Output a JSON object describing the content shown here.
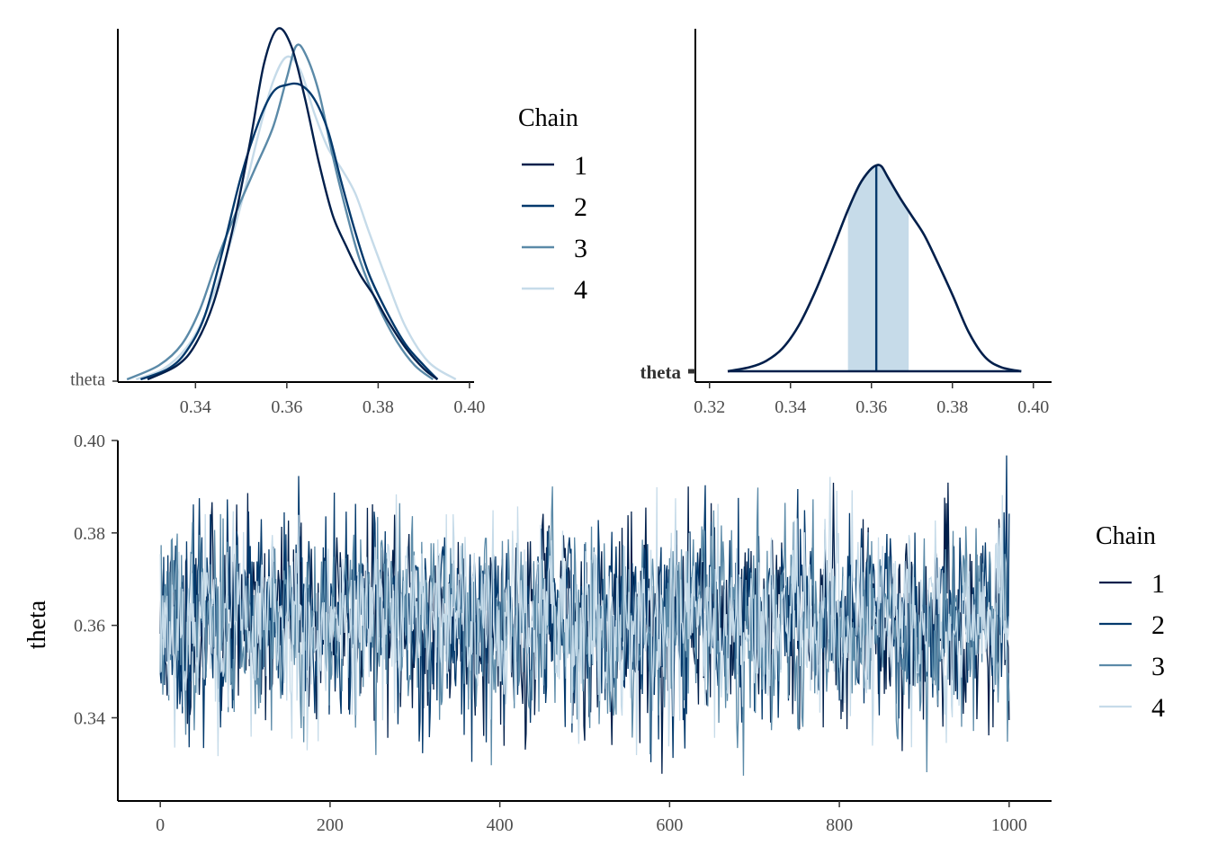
{
  "chart_data": [
    {
      "type": "line",
      "name": "density-overlay",
      "title": "",
      "xlabel": "",
      "ylabel": "",
      "y_tick_label": "theta",
      "xlim": [
        0.323,
        0.401
      ],
      "x_ticks": [
        "0.34",
        "0.36",
        "0.38",
        "0.40"
      ],
      "x_tick_values": [
        0.34,
        0.36,
        0.38,
        0.4
      ],
      "legend": {
        "title": "Chain",
        "position": "right"
      },
      "series": [
        {
          "name": "1",
          "color": "#011f4b",
          "x": [
            0.3295,
            0.336,
            0.34,
            0.344,
            0.348,
            0.352,
            0.355,
            0.358,
            0.361,
            0.364,
            0.367,
            0.37,
            0.373,
            0.376,
            0.379,
            0.382,
            0.386,
            0.39,
            0.393
          ],
          "density": [
            0.0,
            0.04,
            0.1,
            0.22,
            0.42,
            0.68,
            0.9,
            1.0,
            0.95,
            0.8,
            0.62,
            0.47,
            0.38,
            0.3,
            0.24,
            0.17,
            0.09,
            0.03,
            0.0
          ]
        },
        {
          "name": "2",
          "color": "#03396c",
          "x": [
            0.328,
            0.334,
            0.338,
            0.342,
            0.346,
            0.35,
            0.354,
            0.357,
            0.36,
            0.363,
            0.366,
            0.369,
            0.372,
            0.375,
            0.378,
            0.382,
            0.386,
            0.39,
            0.393
          ],
          "density": [
            0.0,
            0.03,
            0.08,
            0.18,
            0.37,
            0.58,
            0.74,
            0.82,
            0.84,
            0.84,
            0.8,
            0.71,
            0.56,
            0.42,
            0.3,
            0.19,
            0.1,
            0.04,
            0.0
          ]
        },
        {
          "name": "3",
          "color": "#5b8aa8",
          "x": [
            0.325,
            0.332,
            0.337,
            0.341,
            0.345,
            0.349,
            0.353,
            0.357,
            0.36,
            0.362,
            0.364,
            0.367,
            0.37,
            0.373,
            0.376,
            0.38,
            0.384,
            0.388,
            0.392
          ],
          "density": [
            0.0,
            0.04,
            0.1,
            0.2,
            0.35,
            0.48,
            0.6,
            0.72,
            0.86,
            0.95,
            0.93,
            0.82,
            0.64,
            0.48,
            0.34,
            0.21,
            0.11,
            0.04,
            0.0
          ]
        },
        {
          "name": "4",
          "color": "#c6dbe9",
          "x": [
            0.327,
            0.333,
            0.338,
            0.342,
            0.346,
            0.35,
            0.354,
            0.357,
            0.36,
            0.363,
            0.366,
            0.369,
            0.372,
            0.375,
            0.378,
            0.382,
            0.386,
            0.391,
            0.397
          ],
          "density": [
            0.0,
            0.03,
            0.09,
            0.18,
            0.32,
            0.5,
            0.71,
            0.85,
            0.92,
            0.88,
            0.76,
            0.66,
            0.6,
            0.53,
            0.42,
            0.28,
            0.15,
            0.05,
            0.0
          ]
        }
      ]
    },
    {
      "type": "area",
      "name": "posterior-area",
      "title": "",
      "xlabel": "",
      "ylabel": "",
      "y_tick_label": "theta",
      "xlim": [
        0.3165,
        0.4045
      ],
      "x_ticks": [
        "0.32",
        "0.34",
        "0.36",
        "0.38",
        "0.40"
      ],
      "x_tick_values": [
        0.32,
        0.34,
        0.36,
        0.38,
        0.4
      ],
      "median": 0.3612,
      "interval": [
        0.3542,
        0.3692
      ],
      "curve_color": "#011f4b",
      "fill_color": "#c6dbe9",
      "x": [
        0.3245,
        0.33,
        0.334,
        0.338,
        0.342,
        0.346,
        0.35,
        0.354,
        0.357,
        0.3595,
        0.3612,
        0.3625,
        0.364,
        0.367,
        0.37,
        0.373,
        0.376,
        0.38,
        0.384,
        0.388,
        0.392,
        0.397
      ],
      "density": [
        0.0,
        0.02,
        0.05,
        0.11,
        0.22,
        0.38,
        0.57,
        0.77,
        0.9,
        0.97,
        0.995,
        0.99,
        0.94,
        0.84,
        0.75,
        0.66,
        0.54,
        0.37,
        0.19,
        0.07,
        0.02,
        0.0
      ]
    },
    {
      "type": "line",
      "name": "trace-plot",
      "title": "",
      "xlabel": "",
      "ylabel": "theta",
      "xlim": [
        -50,
        1050
      ],
      "ylim": [
        0.322,
        0.4
      ],
      "x_ticks": [
        "0",
        "200",
        "400",
        "600",
        "800",
        "1000"
      ],
      "x_tick_values": [
        0,
        200,
        400,
        600,
        800,
        1000
      ],
      "y_ticks": [
        "0.34",
        "0.36",
        "0.38",
        "0.40"
      ],
      "y_tick_values": [
        0.34,
        0.36,
        0.38,
        0.4
      ],
      "iterations": 1000,
      "legend": {
        "title": "Chain",
        "position": "right"
      },
      "series": [
        {
          "name": "1",
          "color": "#011f4b",
          "mean": 0.361,
          "sd": 0.0105,
          "seed": 11
        },
        {
          "name": "2",
          "color": "#03396c",
          "mean": 0.361,
          "sd": 0.0105,
          "seed": 23
        },
        {
          "name": "3",
          "color": "#5b8aa8",
          "mean": 0.361,
          "sd": 0.0105,
          "seed": 37
        },
        {
          "name": "4",
          "color": "#c6dbe9",
          "mean": 0.361,
          "sd": 0.0105,
          "seed": 53
        }
      ]
    }
  ]
}
